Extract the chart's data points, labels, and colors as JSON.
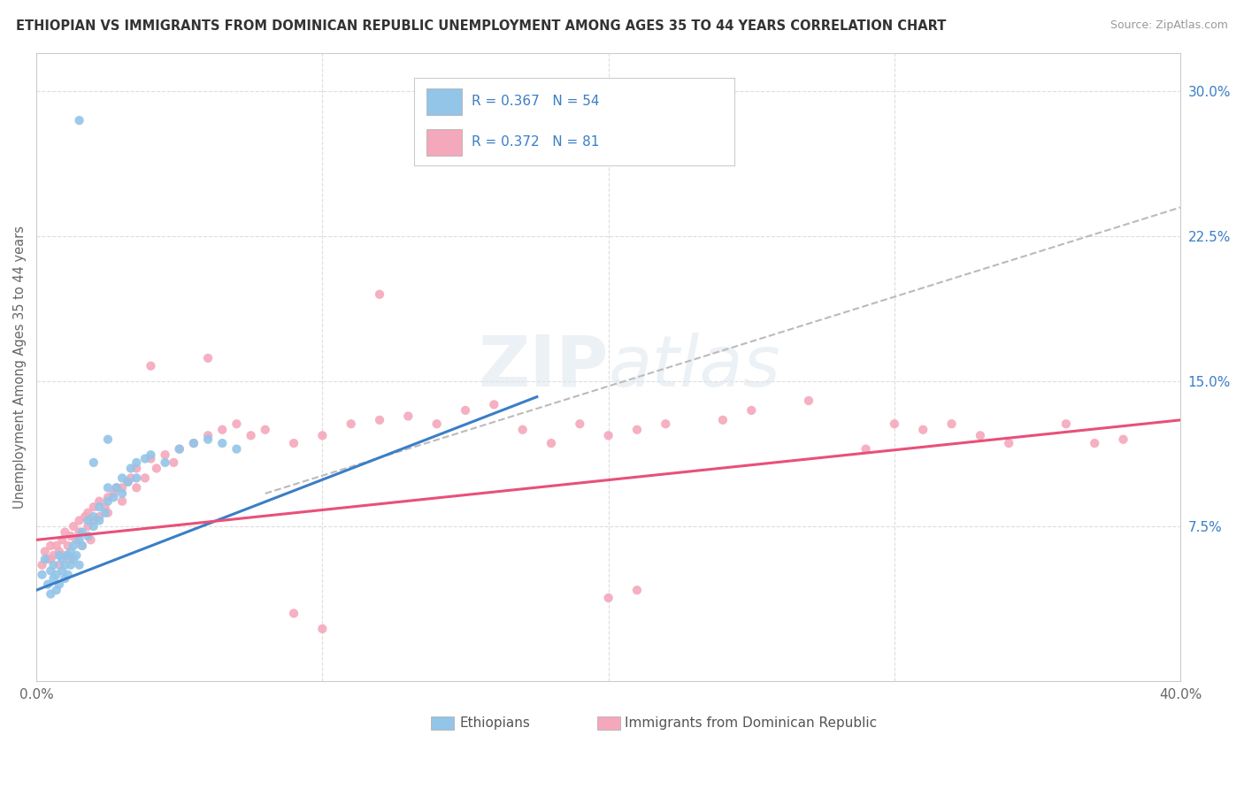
{
  "title": "ETHIOPIAN VS IMMIGRANTS FROM DOMINICAN REPUBLIC UNEMPLOYMENT AMONG AGES 35 TO 44 YEARS CORRELATION CHART",
  "source": "Source: ZipAtlas.com",
  "ylabel": "Unemployment Among Ages 35 to 44 years",
  "xlim": [
    0.0,
    0.4
  ],
  "ylim": [
    -0.005,
    0.32
  ],
  "blue_color": "#92C5E8",
  "pink_color": "#F4A8BC",
  "trend_blue": "#3A7EC6",
  "trend_pink": "#E8507A",
  "trend_dashed_color": "#BBBBBB",
  "blue_scatter": [
    [
      0.002,
      0.05
    ],
    [
      0.003,
      0.058
    ],
    [
      0.004,
      0.045
    ],
    [
      0.005,
      0.052
    ],
    [
      0.005,
      0.04
    ],
    [
      0.006,
      0.048
    ],
    [
      0.006,
      0.055
    ],
    [
      0.007,
      0.042
    ],
    [
      0.007,
      0.05
    ],
    [
      0.008,
      0.045
    ],
    [
      0.008,
      0.06
    ],
    [
      0.009,
      0.052
    ],
    [
      0.009,
      0.058
    ],
    [
      0.01,
      0.048
    ],
    [
      0.01,
      0.055
    ],
    [
      0.011,
      0.05
    ],
    [
      0.011,
      0.06
    ],
    [
      0.012,
      0.055
    ],
    [
      0.012,
      0.062
    ],
    [
      0.013,
      0.058
    ],
    [
      0.013,
      0.065
    ],
    [
      0.014,
      0.06
    ],
    [
      0.015,
      0.055
    ],
    [
      0.015,
      0.068
    ],
    [
      0.016,
      0.065
    ],
    [
      0.016,
      0.072
    ],
    [
      0.018,
      0.07
    ],
    [
      0.018,
      0.078
    ],
    [
      0.02,
      0.075
    ],
    [
      0.02,
      0.08
    ],
    [
      0.022,
      0.078
    ],
    [
      0.022,
      0.085
    ],
    [
      0.024,
      0.082
    ],
    [
      0.025,
      0.088
    ],
    [
      0.025,
      0.095
    ],
    [
      0.027,
      0.09
    ],
    [
      0.028,
      0.095
    ],
    [
      0.03,
      0.092
    ],
    [
      0.03,
      0.1
    ],
    [
      0.032,
      0.098
    ],
    [
      0.033,
      0.105
    ],
    [
      0.035,
      0.1
    ],
    [
      0.035,
      0.108
    ],
    [
      0.038,
      0.11
    ],
    [
      0.04,
      0.112
    ],
    [
      0.045,
      0.108
    ],
    [
      0.05,
      0.115
    ],
    [
      0.055,
      0.118
    ],
    [
      0.06,
      0.12
    ],
    [
      0.065,
      0.118
    ],
    [
      0.07,
      0.115
    ],
    [
      0.02,
      0.108
    ],
    [
      0.025,
      0.12
    ],
    [
      0.015,
      0.285
    ]
  ],
  "pink_scatter": [
    [
      0.002,
      0.055
    ],
    [
      0.003,
      0.062
    ],
    [
      0.004,
      0.058
    ],
    [
      0.005,
      0.065
    ],
    [
      0.005,
      0.058
    ],
    [
      0.006,
      0.06
    ],
    [
      0.007,
      0.065
    ],
    [
      0.008,
      0.055
    ],
    [
      0.008,
      0.062
    ],
    [
      0.009,
      0.068
    ],
    [
      0.01,
      0.06
    ],
    [
      0.01,
      0.072
    ],
    [
      0.011,
      0.065
    ],
    [
      0.012,
      0.07
    ],
    [
      0.012,
      0.058
    ],
    [
      0.013,
      0.075
    ],
    [
      0.014,
      0.068
    ],
    [
      0.015,
      0.072
    ],
    [
      0.015,
      0.078
    ],
    [
      0.016,
      0.065
    ],
    [
      0.017,
      0.08
    ],
    [
      0.018,
      0.075
    ],
    [
      0.018,
      0.082
    ],
    [
      0.019,
      0.068
    ],
    [
      0.02,
      0.078
    ],
    [
      0.02,
      0.085
    ],
    [
      0.022,
      0.08
    ],
    [
      0.022,
      0.088
    ],
    [
      0.024,
      0.085
    ],
    [
      0.025,
      0.09
    ],
    [
      0.025,
      0.082
    ],
    [
      0.027,
      0.092
    ],
    [
      0.028,
      0.095
    ],
    [
      0.03,
      0.088
    ],
    [
      0.03,
      0.095
    ],
    [
      0.032,
      0.098
    ],
    [
      0.033,
      0.1
    ],
    [
      0.035,
      0.095
    ],
    [
      0.035,
      0.105
    ],
    [
      0.038,
      0.1
    ],
    [
      0.04,
      0.11
    ],
    [
      0.042,
      0.105
    ],
    [
      0.045,
      0.112
    ],
    [
      0.048,
      0.108
    ],
    [
      0.05,
      0.115
    ],
    [
      0.055,
      0.118
    ],
    [
      0.06,
      0.122
    ],
    [
      0.065,
      0.125
    ],
    [
      0.07,
      0.128
    ],
    [
      0.075,
      0.122
    ],
    [
      0.08,
      0.125
    ],
    [
      0.04,
      0.158
    ],
    [
      0.06,
      0.162
    ],
    [
      0.09,
      0.118
    ],
    [
      0.1,
      0.122
    ],
    [
      0.11,
      0.128
    ],
    [
      0.12,
      0.13
    ],
    [
      0.13,
      0.132
    ],
    [
      0.14,
      0.128
    ],
    [
      0.15,
      0.135
    ],
    [
      0.16,
      0.138
    ],
    [
      0.17,
      0.125
    ],
    [
      0.18,
      0.118
    ],
    [
      0.19,
      0.128
    ],
    [
      0.2,
      0.122
    ],
    [
      0.21,
      0.125
    ],
    [
      0.22,
      0.128
    ],
    [
      0.24,
      0.13
    ],
    [
      0.25,
      0.135
    ],
    [
      0.27,
      0.14
    ],
    [
      0.29,
      0.115
    ],
    [
      0.3,
      0.128
    ],
    [
      0.31,
      0.125
    ],
    [
      0.32,
      0.128
    ],
    [
      0.33,
      0.122
    ],
    [
      0.34,
      0.118
    ],
    [
      0.36,
      0.128
    ],
    [
      0.37,
      0.118
    ],
    [
      0.38,
      0.12
    ],
    [
      0.12,
      0.195
    ],
    [
      0.09,
      0.03
    ],
    [
      0.1,
      0.022
    ],
    [
      0.2,
      0.038
    ],
    [
      0.21,
      0.042
    ]
  ],
  "blue_line": [
    [
      0.0,
      0.042
    ],
    [
      0.175,
      0.142
    ]
  ],
  "pink_line": [
    [
      0.0,
      0.068
    ],
    [
      0.4,
      0.13
    ]
  ],
  "dashed_line": [
    [
      0.08,
      0.092
    ],
    [
      0.4,
      0.24
    ]
  ]
}
